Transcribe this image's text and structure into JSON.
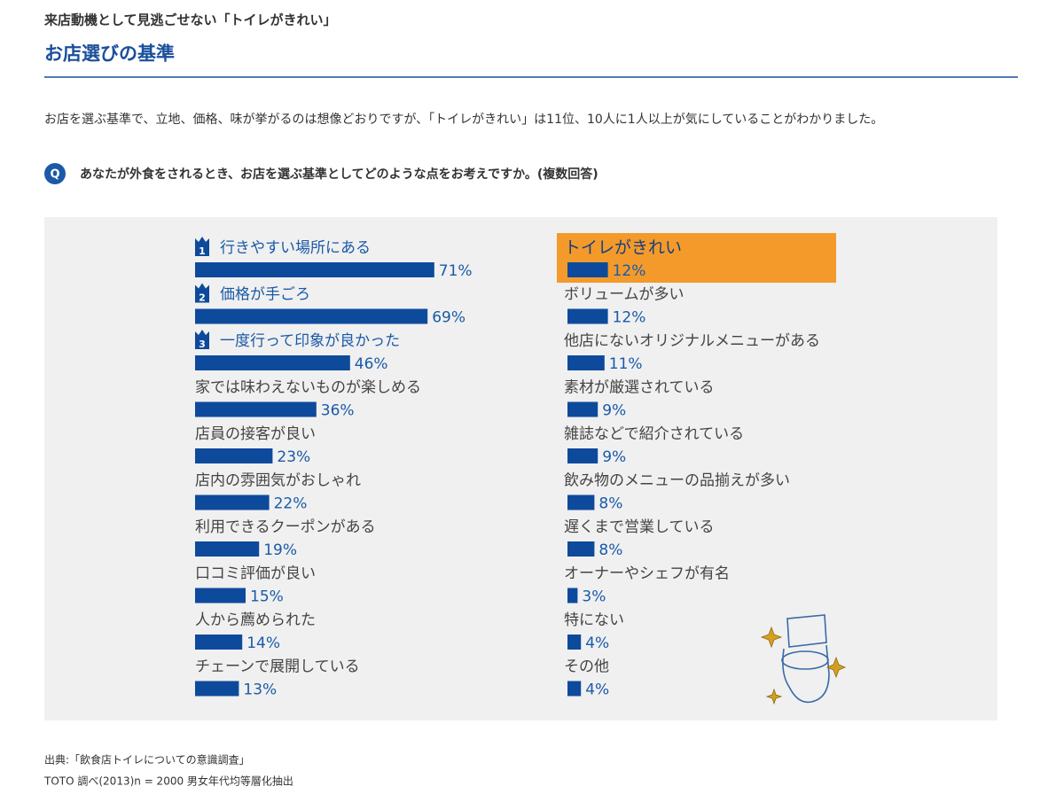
{
  "header": {
    "kicker": "来店動機として見逃ごせない「トイレがきれい」",
    "title": "お店選びの基準"
  },
  "intro": "お店を選ぶ基準で、立地、価格、味が挙がるのは想像どおりですが、「トイレがきれい」は11位、10人に1人以上が気にしていることがわかりました。",
  "question": {
    "marker": "Q",
    "text": "あなたが外食をされるとき、お店を選ぶ基準としてどのような点をお考えですか。(複数回答)"
  },
  "chart_data": {
    "type": "bar",
    "orientation": "horizontal",
    "color": "#0d4a9c",
    "highlight_index": 10,
    "highlight_color": "#f39a2b",
    "rank_labels": [
      "1",
      "2",
      "3"
    ],
    "categories": [
      "行きやすい場所にある",
      "価格が手ごろ",
      "一度行って印象が良かった",
      "家では味わえないものが楽しめる",
      "店員の接客が良い",
      "店内の雰囲気がおしゃれ",
      "利用できるクーポンがある",
      "口コミ評価が良い",
      "人から薦められた",
      "チェーンで展開している",
      "トイレがきれい",
      "ボリュームが多い",
      "他店にないオリジナルメニューがある",
      "素材が厳選されている",
      "雑誌などで紹介されている",
      "飲み物のメニューの品揃えが多い",
      "遅くまで営業している",
      "オーナーやシェフが有名",
      "特にない",
      "その他"
    ],
    "values": [
      71,
      69,
      46,
      36,
      23,
      22,
      19,
      15,
      14,
      13,
      12,
      12,
      11,
      9,
      9,
      8,
      8,
      3,
      4,
      4
    ],
    "value_labels": [
      "71%",
      "69%",
      "46%",
      "36%",
      "23%",
      "22%",
      "19%",
      "15%",
      "14%",
      "13%",
      "12%",
      "12%",
      "11%",
      "9%",
      "9%",
      "8%",
      "8%",
      "3%",
      "4%",
      "4%"
    ]
  },
  "source": [
    "出典:「飲食店トイレについての意識調査」",
    "TOTO 調べ(2013)n = 2000 男女年代均等層化抽出"
  ]
}
